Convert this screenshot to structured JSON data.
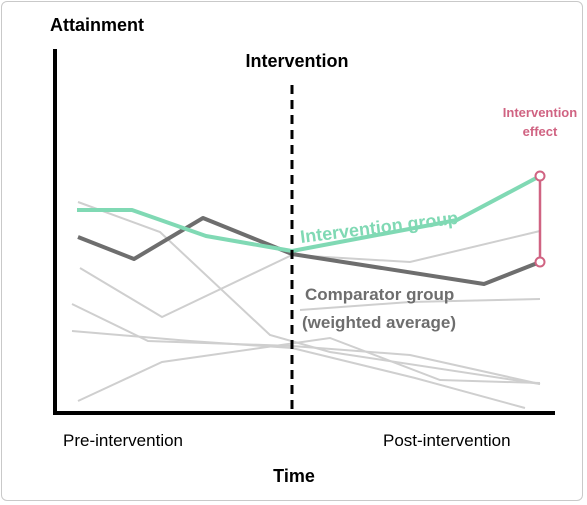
{
  "labels": {
    "y_axis": "Attainment",
    "x_axis": "Time",
    "intervention": "Intervention",
    "pre": "Pre-intervention",
    "post": "Post-intervention",
    "effect_line1": "Intervention",
    "effect_line2": "effect",
    "intervention_group": "Intervention group",
    "comparator_line1": "Comparator group",
    "comparator_line2": "(weighted average)"
  },
  "colors": {
    "intervention": "#80d9b4",
    "comparator": "#6e6e6e",
    "background_series": "#cfcfcf",
    "effect": "#d06382",
    "axis": "#000000"
  }
}
